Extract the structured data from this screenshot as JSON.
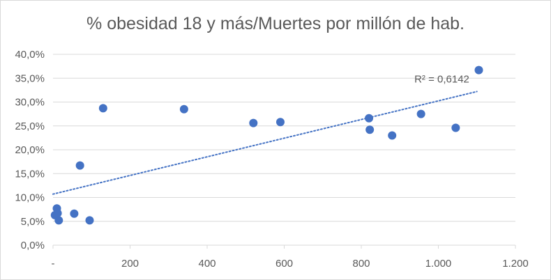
{
  "chart_data": {
    "type": "scatter",
    "title": "% obesidad 18 y más/Muertes por millón de hab.",
    "xlabel": "",
    "ylabel": "",
    "xlim": [
      0,
      1200
    ],
    "ylim": [
      0,
      0.4
    ],
    "x_ticks": [
      0,
      200,
      400,
      600,
      800,
      1000,
      1200
    ],
    "x_tick_labels": [
      "-",
      "200",
      "400",
      "600",
      "800",
      "1.000",
      "1.200"
    ],
    "y_ticks": [
      0,
      0.05,
      0.1,
      0.15,
      0.2,
      0.25,
      0.3,
      0.35,
      0.4
    ],
    "y_tick_labels": [
      "0,0%",
      "5,0%",
      "10,0%",
      "15,0%",
      "20,0%",
      "25,0%",
      "30,0%",
      "35,0%",
      "40,0%"
    ],
    "grid": "horizontal",
    "legend": "none",
    "marker_color": "#4472c4",
    "trendline": {
      "type": "linear",
      "label": "R² = 0,6142",
      "color": "#4472c4",
      "style": "dotted",
      "x_range": [
        0,
        1100
      ],
      "y_start": 0.107,
      "y_end": 0.322
    },
    "points": [
      {
        "x": 5,
        "y": 0.063
      },
      {
        "x": 10,
        "y": 0.077
      },
      {
        "x": 12,
        "y": 0.067
      },
      {
        "x": 15,
        "y": 0.052
      },
      {
        "x": 55,
        "y": 0.066
      },
      {
        "x": 70,
        "y": 0.167
      },
      {
        "x": 95,
        "y": 0.052
      },
      {
        "x": 130,
        "y": 0.287
      },
      {
        "x": 340,
        "y": 0.285
      },
      {
        "x": 520,
        "y": 0.256
      },
      {
        "x": 590,
        "y": 0.258
      },
      {
        "x": 820,
        "y": 0.266
      },
      {
        "x": 822,
        "y": 0.242
      },
      {
        "x": 880,
        "y": 0.23
      },
      {
        "x": 955,
        "y": 0.275
      },
      {
        "x": 1045,
        "y": 0.246
      },
      {
        "x": 1105,
        "y": 0.367
      }
    ]
  }
}
